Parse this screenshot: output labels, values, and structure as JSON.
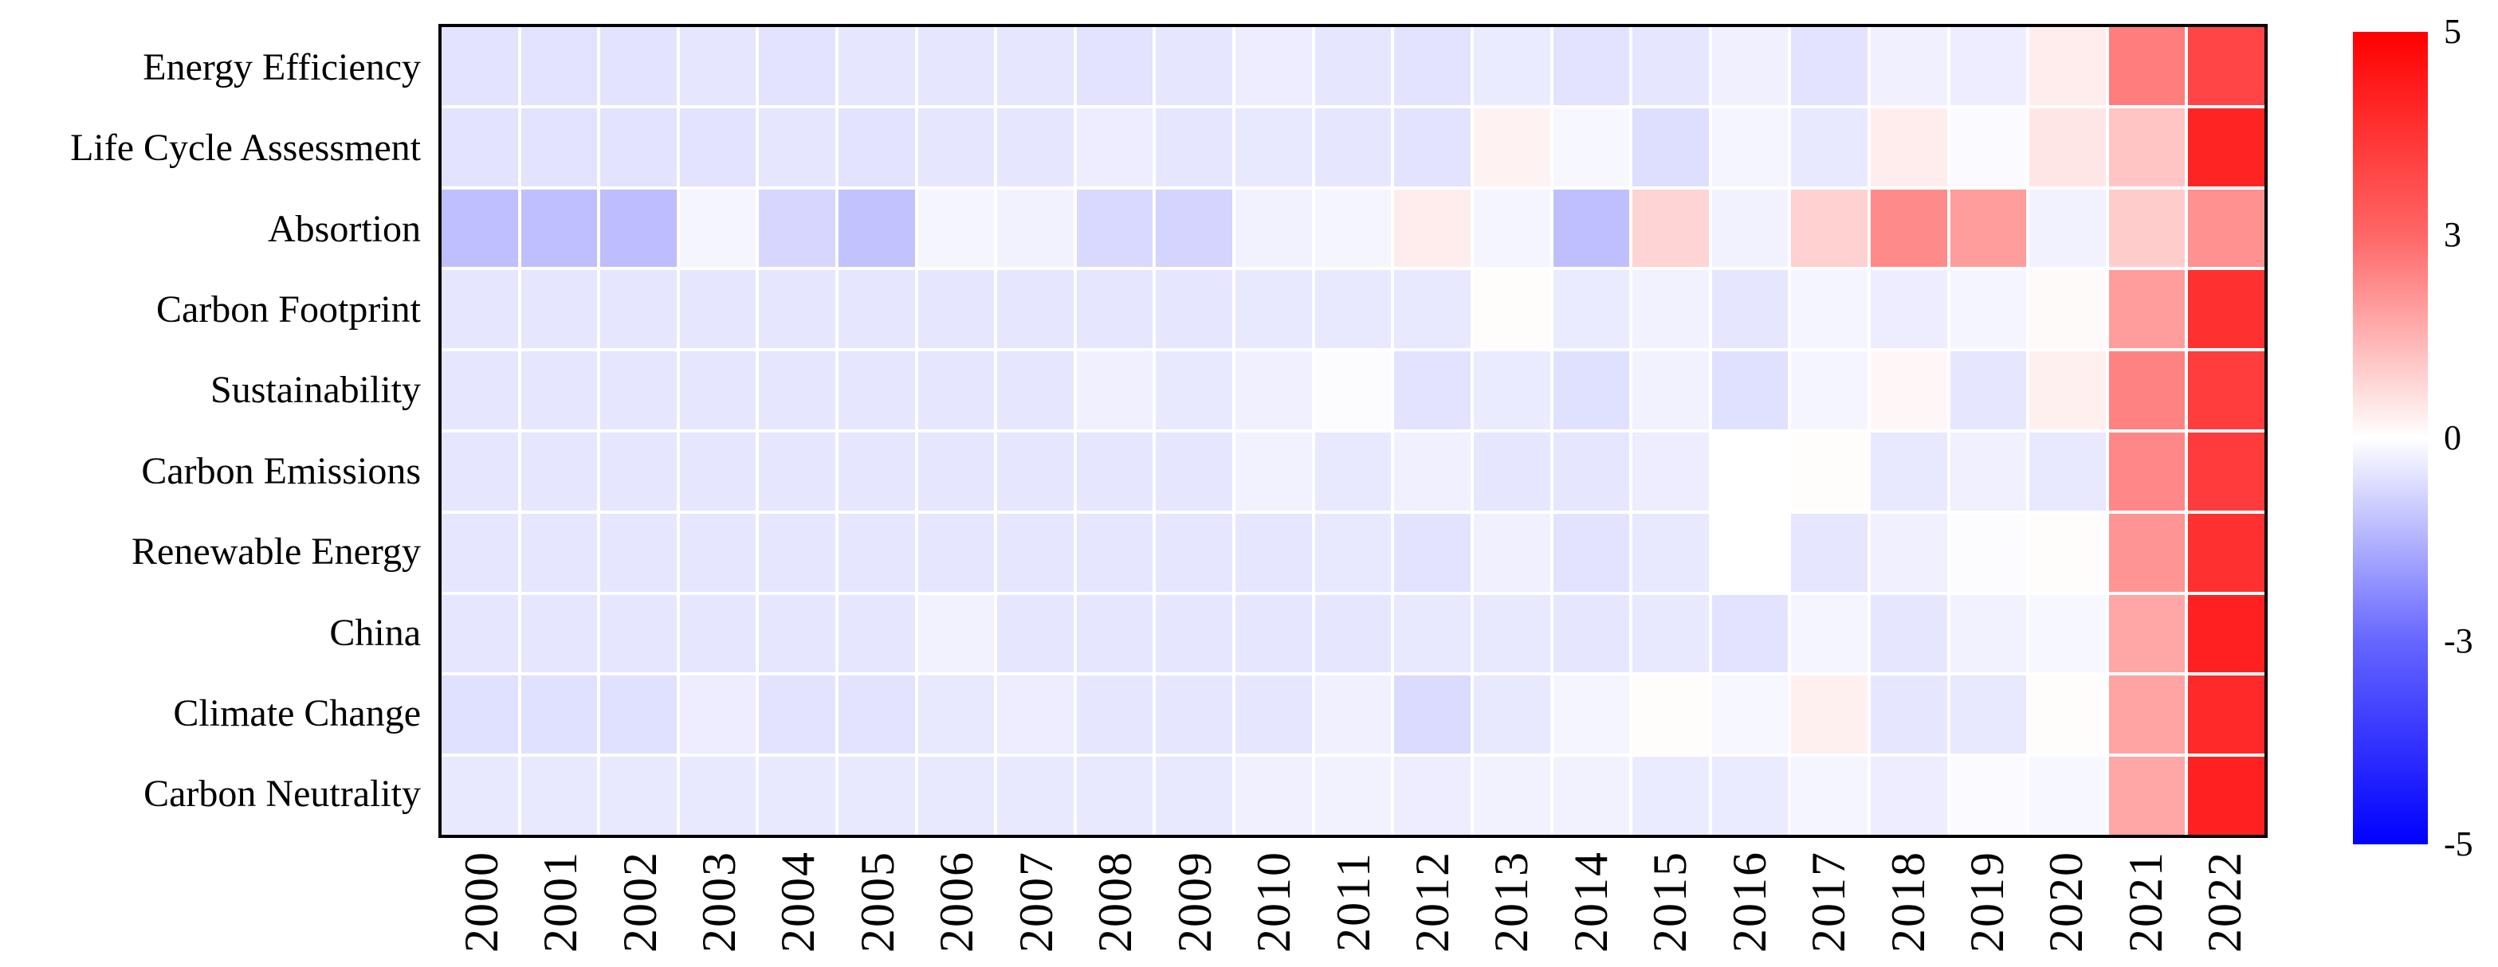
{
  "chart_data": {
    "type": "heatmap",
    "title": "",
    "xlabel": "",
    "ylabel": "",
    "rows": [
      "Energy Efficiency",
      "Life Cycle Assessment",
      "Absortion",
      "Carbon Footprint",
      "Sustainability",
      "Carbon Emissions",
      "Renewable Energy",
      "China",
      "Climate Change",
      "Carbon Neutrality"
    ],
    "columns": [
      "2000",
      "2001",
      "2002",
      "2003",
      "2004",
      "2005",
      "2006",
      "2007",
      "2008",
      "2009",
      "2010",
      "2011",
      "2012",
      "2013",
      "2014",
      "2015",
      "2016",
      "2017",
      "2018",
      "2019",
      "2020",
      "2021",
      "2022"
    ],
    "values": [
      [
        -0.55,
        -0.55,
        -0.55,
        -0.5,
        -0.55,
        -0.5,
        -0.5,
        -0.5,
        -0.55,
        -0.5,
        -0.35,
        -0.5,
        -0.55,
        -0.4,
        -0.55,
        -0.5,
        -0.3,
        -0.55,
        -0.3,
        -0.35,
        0.35,
        2.55,
        3.65
      ],
      [
        -0.55,
        -0.55,
        -0.55,
        -0.55,
        -0.5,
        -0.55,
        -0.5,
        -0.5,
        -0.35,
        -0.5,
        -0.45,
        -0.5,
        -0.55,
        0.25,
        -0.15,
        -0.65,
        -0.2,
        -0.45,
        0.35,
        -0.1,
        0.5,
        1.15,
        4.3
      ],
      [
        -1.25,
        -1.25,
        -1.3,
        -0.2,
        -0.8,
        -1.2,
        -0.2,
        -0.25,
        -0.75,
        -0.85,
        -0.25,
        -0.2,
        0.35,
        -0.2,
        -1.25,
        0.85,
        -0.25,
        0.9,
        2.3,
        1.95,
        -0.25,
        1.0,
        2.15
      ],
      [
        -0.5,
        -0.5,
        -0.5,
        -0.5,
        -0.5,
        -0.5,
        -0.5,
        -0.5,
        -0.5,
        -0.5,
        -0.45,
        -0.45,
        -0.45,
        0.05,
        -0.4,
        -0.25,
        -0.5,
        -0.2,
        -0.35,
        -0.2,
        0.1,
        1.95,
        4.05
      ],
      [
        -0.5,
        -0.5,
        -0.5,
        -0.5,
        -0.5,
        -0.5,
        -0.5,
        -0.5,
        -0.3,
        -0.45,
        -0.3,
        -0.05,
        -0.55,
        -0.4,
        -0.6,
        -0.25,
        -0.6,
        -0.2,
        0.15,
        -0.5,
        0.3,
        2.45,
        3.8
      ],
      [
        -0.5,
        -0.5,
        -0.5,
        -0.5,
        -0.5,
        -0.5,
        -0.5,
        -0.5,
        -0.5,
        -0.5,
        -0.25,
        -0.45,
        -0.3,
        -0.5,
        -0.5,
        -0.35,
        0.0,
        0.05,
        -0.45,
        -0.3,
        -0.45,
        2.35,
        3.85
      ],
      [
        -0.5,
        -0.5,
        -0.5,
        -0.5,
        -0.5,
        -0.5,
        -0.5,
        -0.5,
        -0.5,
        -0.5,
        -0.5,
        -0.45,
        -0.55,
        -0.3,
        -0.55,
        -0.45,
        0.0,
        -0.5,
        -0.3,
        -0.05,
        0.05,
        2.1,
        4.05
      ],
      [
        -0.5,
        -0.5,
        -0.5,
        -0.5,
        -0.5,
        -0.5,
        -0.25,
        -0.5,
        -0.5,
        -0.5,
        -0.5,
        -0.5,
        -0.45,
        -0.45,
        -0.5,
        -0.45,
        -0.55,
        -0.2,
        -0.5,
        -0.25,
        -0.15,
        1.75,
        4.35
      ],
      [
        -0.6,
        -0.6,
        -0.6,
        -0.35,
        -0.55,
        -0.55,
        -0.45,
        -0.35,
        -0.5,
        -0.5,
        -0.5,
        -0.3,
        -0.7,
        -0.45,
        -0.2,
        0.05,
        -0.15,
        0.3,
        -0.5,
        -0.45,
        0.05,
        1.8,
        4.2
      ],
      [
        -0.45,
        -0.45,
        -0.45,
        -0.45,
        -0.45,
        -0.45,
        -0.45,
        -0.45,
        -0.45,
        -0.45,
        -0.3,
        -0.25,
        -0.35,
        -0.25,
        -0.25,
        -0.4,
        -0.4,
        -0.2,
        -0.35,
        -0.1,
        -0.15,
        1.75,
        4.35
      ]
    ],
    "colormap": "bwr",
    "vmin": -5,
    "vmax": 5,
    "grid": true,
    "grid_gap_color": "#ffffff",
    "border_color": "#000000",
    "legend_position": "right",
    "colorbar_ticks": [
      "5",
      "3",
      "0",
      "-3",
      "-5"
    ],
    "colorbar_tick_positions": [
      0,
      0.25,
      0.5,
      0.75,
      1
    ]
  }
}
